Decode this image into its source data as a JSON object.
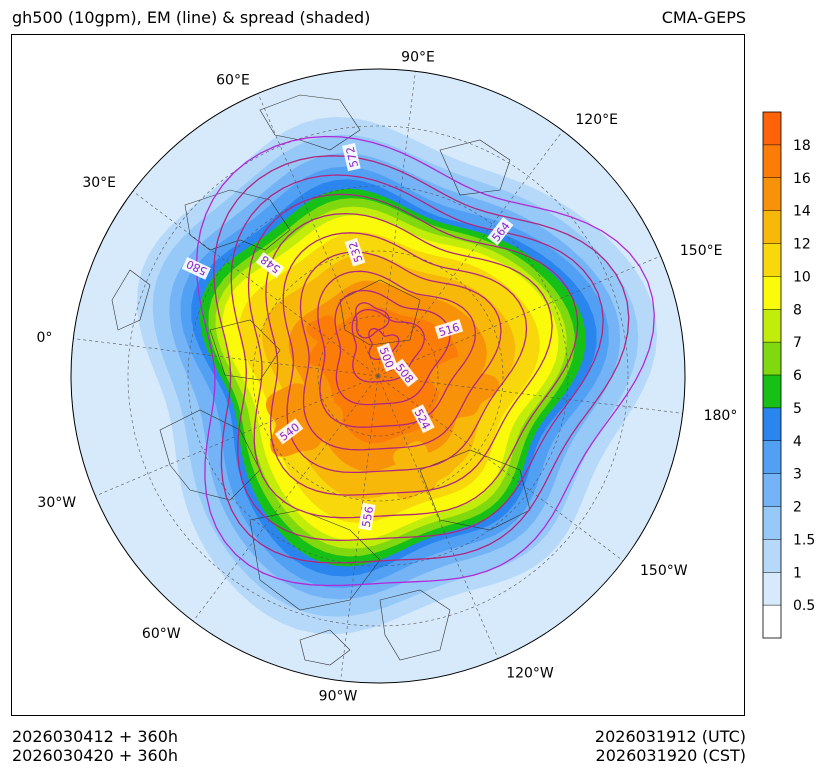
{
  "header": {
    "title": "gh500 (10gpm), EM (line) & spread (shaded)",
    "model": "CMA-GEPS"
  },
  "footer": {
    "init_utc": "2026030412 + 360h",
    "init_cst": "2026030420 + 360h",
    "valid_utc": "2026031912 (UTC)",
    "valid_cst": "2026031920 (CST)"
  },
  "map": {
    "projection": "north-polar-stereographic",
    "longitude_labels": [
      {
        "lon": -60,
        "text": "60°W"
      },
      {
        "lon": -90,
        "text": "90°W"
      },
      {
        "lon": -30,
        "text": "30°W"
      },
      {
        "lon": -120,
        "text": "120°W"
      },
      {
        "lon": 0,
        "text": "0°"
      },
      {
        "lon": -150,
        "text": "150°W"
      },
      {
        "lon": 30,
        "text": "30°E"
      },
      {
        "lon": 180,
        "text": "180°"
      },
      {
        "lon": 60,
        "text": "60°E"
      },
      {
        "lon": 150,
        "text": "150°E"
      },
      {
        "lon": 90,
        "text": "90°E"
      },
      {
        "lon": 120,
        "text": "120°E"
      }
    ],
    "colors": {
      "ocean_edge": "#d6eafb",
      "land_lines": "#333333",
      "contour_line": "#b0287e",
      "contour_label": "#8a1fd0"
    }
  },
  "chart_data": {
    "type": "contour+filled",
    "title": "gh500 (10gpm), EM (line) & spread (shaded)",
    "variable": "500 hPa geopotential height",
    "contour_units": "10gpm",
    "contour_levels": [
      500,
      508,
      516,
      524,
      532,
      540,
      548,
      556,
      564,
      572,
      580
    ],
    "contour_labels_shown": [
      "572",
      "564",
      "580",
      "532",
      "516",
      "548",
      "500",
      "540",
      "508",
      "524",
      "556"
    ],
    "spread_levels": [
      0.5,
      1,
      1.5,
      2,
      3,
      4,
      5,
      6,
      7,
      8,
      10,
      12,
      14,
      16,
      18
    ],
    "colorbar": {
      "colors": [
        "#ffffff",
        "#d6eafb",
        "#b6d9fa",
        "#96c8f8",
        "#74b4f6",
        "#52a0f4",
        "#2a86ee",
        "#16c016",
        "#80d80e",
        "#c2ec0a",
        "#fafa0a",
        "#f8d80a",
        "#f8b80a",
        "#f89208",
        "#fc7c08",
        "#ff6208"
      ],
      "tick_labels": [
        "0.5",
        "1",
        "1.5",
        "2",
        "3",
        "4",
        "5",
        "6",
        "7",
        "8",
        "10",
        "12",
        "14",
        "16",
        "18"
      ]
    }
  }
}
